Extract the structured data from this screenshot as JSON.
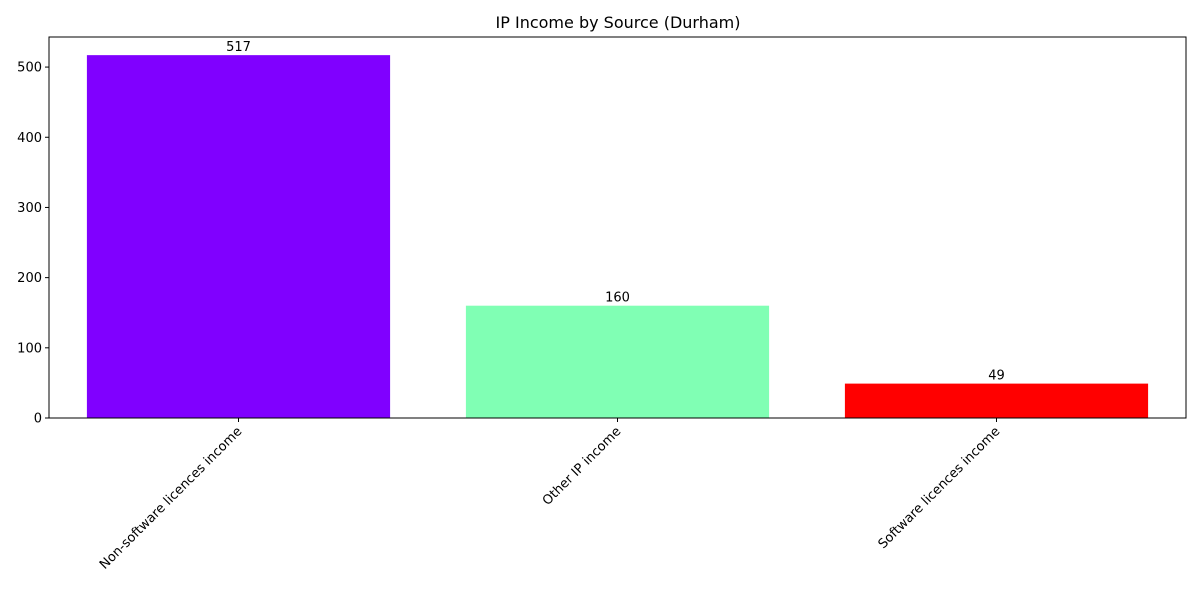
{
  "chart_data": {
    "type": "bar",
    "title": "IP Income by Source (Durham)",
    "xlabel": "",
    "ylabel": "",
    "categories": [
      "Non-software licences income",
      "Other IP income",
      "Software licences income"
    ],
    "values": [
      517,
      160,
      49
    ],
    "colors": [
      "#8000ff",
      "#80ffb4",
      "#ff0000"
    ],
    "ylim": [
      0,
      542.85
    ],
    "yticks": [
      0,
      100,
      200,
      300,
      400,
      500
    ],
    "grid": false,
    "legend": "none"
  }
}
